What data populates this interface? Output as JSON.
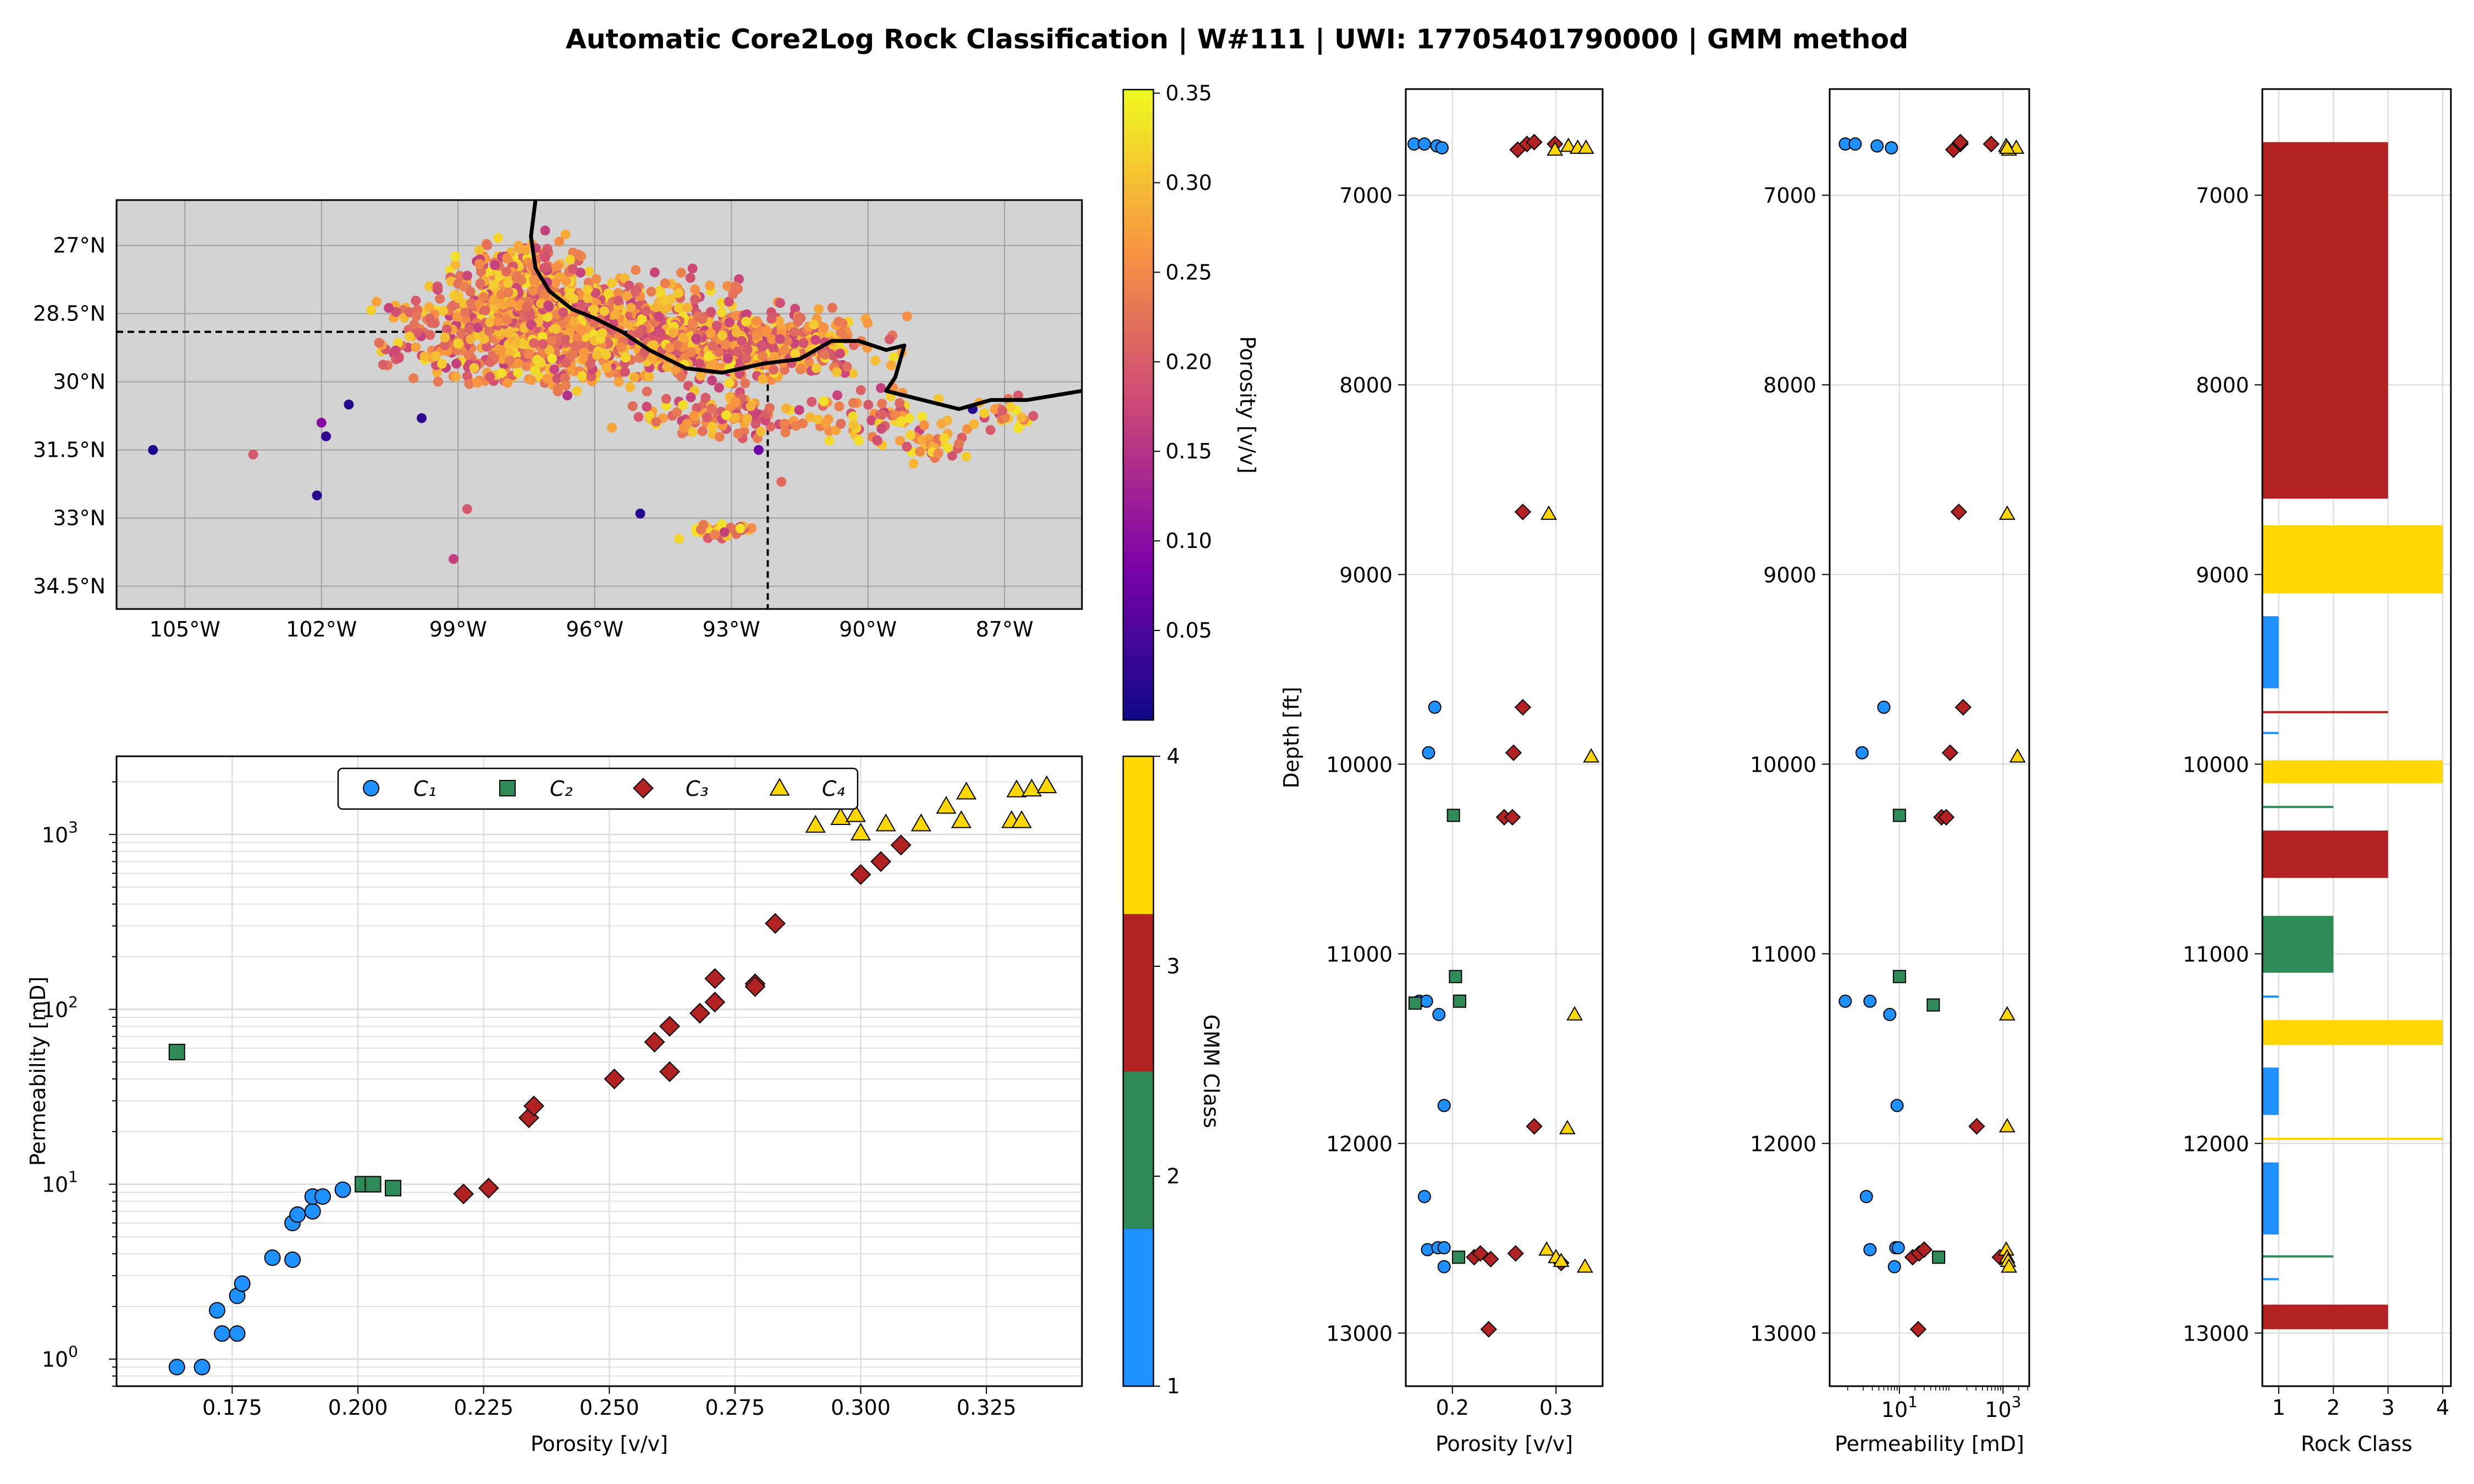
{
  "title": "Automatic Core2Log Rock Classification | W#111 | UWI: 17705401790000 | GMM method",
  "colors": {
    "C1": "#1E90FF",
    "C2": "#2E8B57",
    "C3": "#B22222",
    "C4": "#FFD700",
    "map_bg": "#D3D3D3",
    "grid": "#D9D9D9"
  },
  "map": {
    "xticks": [
      "105°W",
      "102°W",
      "99°W",
      "96°W",
      "93°W",
      "90°W",
      "87°W"
    ],
    "yticks": [
      "34.5°N",
      "33°N",
      "31.5°N",
      "30°N",
      "28.5°N",
      "27°N"
    ],
    "colorbar_label": "Porosity [v/v]",
    "colorbar_ticks": [
      "0.05",
      "0.10",
      "0.15",
      "0.20",
      "0.25",
      "0.30",
      "0.35"
    ],
    "colormap": "plasma"
  },
  "chart_data": [
    {
      "type": "scatter",
      "title": "",
      "xlabel": "Porosity [v/v]",
      "ylabel": "Permeability [mD]",
      "xlim": [
        0.152,
        0.344
      ],
      "ylim": [
        0.7,
        2800
      ],
      "yscale": "log",
      "xtick_labels": [
        "0.175",
        "0.200",
        "0.225",
        "0.250",
        "0.275",
        "0.300",
        "0.325"
      ],
      "ytick_labels": [
        "10^0",
        "10^1",
        "10^2",
        "10^3"
      ],
      "grid": true,
      "legend_placement": "top-center",
      "series": [
        {
          "name": "C1",
          "marker": "circle",
          "points": [
            [
              0.164,
              0.9
            ],
            [
              0.169,
              0.9
            ],
            [
              0.172,
              1.9
            ],
            [
              0.173,
              1.4
            ],
            [
              0.176,
              1.4
            ],
            [
              0.176,
              2.3
            ],
            [
              0.177,
              2.7
            ],
            [
              0.183,
              3.8
            ],
            [
              0.187,
              3.7
            ],
            [
              0.187,
              6.0
            ],
            [
              0.188,
              6.7
            ],
            [
              0.191,
              7.0
            ],
            [
              0.191,
              8.5
            ],
            [
              0.193,
              8.5
            ],
            [
              0.197,
              9.3
            ]
          ]
        },
        {
          "name": "C2",
          "marker": "square",
          "points": [
            [
              0.164,
              57
            ],
            [
              0.201,
              10.0
            ],
            [
              0.203,
              10.0
            ],
            [
              0.207,
              9.5
            ]
          ]
        },
        {
          "name": "C3",
          "marker": "diamond",
          "points": [
            [
              0.221,
              8.8
            ],
            [
              0.226,
              9.5
            ],
            [
              0.234,
              24
            ],
            [
              0.235,
              28
            ],
            [
              0.251,
              40
            ],
            [
              0.259,
              65
            ],
            [
              0.262,
              80
            ],
            [
              0.262,
              44
            ],
            [
              0.268,
              95
            ],
            [
              0.271,
              110
            ],
            [
              0.271,
              150
            ],
            [
              0.279,
              140
            ],
            [
              0.279,
              135
            ],
            [
              0.283,
              310
            ],
            [
              0.3,
              590
            ],
            [
              0.304,
              700
            ],
            [
              0.308,
              870
            ]
          ]
        },
        {
          "name": "C4",
          "marker": "triangle",
          "points": [
            [
              0.291,
              1130
            ],
            [
              0.296,
              1250
            ],
            [
              0.299,
              1300
            ],
            [
              0.3,
              1020
            ],
            [
              0.305,
              1150
            ],
            [
              0.312,
              1150
            ],
            [
              0.317,
              1450
            ],
            [
              0.32,
              1200
            ],
            [
              0.321,
              1750
            ],
            [
              0.33,
              1200
            ],
            [
              0.331,
              1800
            ],
            [
              0.332,
              1200
            ],
            [
              0.334,
              1820
            ],
            [
              0.337,
              1900
            ]
          ]
        }
      ]
    },
    {
      "type": "scatter",
      "title": "",
      "xlabel": "Porosity [v/v]",
      "ylabel": "Depth [ft]",
      "xlim": [
        0.155,
        0.345
      ],
      "ylim": [
        13280,
        6440
      ],
      "xtick_labels": [
        "0.2",
        "0.3"
      ],
      "ytick_labels": [
        "7000",
        "8000",
        "9000",
        "10000",
        "11000",
        "12000",
        "13000"
      ],
      "grid": true,
      "series": [
        {
          "name": "C1",
          "marker": "circle",
          "points": [
            [
              0.163,
              6730
            ],
            [
              0.173,
              6730
            ],
            [
              0.185,
              6740
            ],
            [
              0.19,
              6750
            ],
            [
              0.183,
              9700
            ],
            [
              0.177,
              9940
            ],
            [
              0.168,
              11250
            ],
            [
              0.175,
              11250
            ],
            [
              0.187,
              11320
            ],
            [
              0.192,
              11800
            ],
            [
              0.173,
              12280
            ],
            [
              0.176,
              12560
            ],
            [
              0.186,
              12550
            ],
            [
              0.192,
              12550
            ],
            [
              0.192,
              12650
            ]
          ]
        },
        {
          "name": "C2",
          "marker": "square",
          "points": [
            [
              0.201,
              10270
            ],
            [
              0.203,
              11120
            ],
            [
              0.207,
              11250
            ],
            [
              0.164,
              11260
            ],
            [
              0.206,
              12600
            ]
          ]
        },
        {
          "name": "C3",
          "marker": "diamond",
          "points": [
            [
              0.263,
              6760
            ],
            [
              0.272,
              6730
            ],
            [
              0.279,
              6720
            ],
            [
              0.299,
              6730
            ],
            [
              0.268,
              8670
            ],
            [
              0.268,
              9700
            ],
            [
              0.259,
              9940
            ],
            [
              0.25,
              10280
            ],
            [
              0.258,
              10280
            ],
            [
              0.279,
              11910
            ],
            [
              0.221,
              12600
            ],
            [
              0.227,
              12580
            ],
            [
              0.237,
              12610
            ],
            [
              0.261,
              12580
            ],
            [
              0.305,
              12630
            ],
            [
              0.235,
              12980
            ]
          ]
        },
        {
          "name": "C4",
          "marker": "triangle",
          "points": [
            [
              0.299,
              6760
            ],
            [
              0.312,
              6740
            ],
            [
              0.321,
              6750
            ],
            [
              0.329,
              6750
            ],
            [
              0.293,
              8680
            ],
            [
              0.334,
              9960
            ],
            [
              0.318,
              11320
            ],
            [
              0.311,
              11920
            ],
            [
              0.291,
              12560
            ],
            [
              0.3,
              12600
            ],
            [
              0.305,
              12620
            ],
            [
              0.328,
              12650
            ]
          ]
        }
      ]
    },
    {
      "type": "scatter",
      "title": "",
      "xlabel": "Permeability [mD]",
      "ylabel": "",
      "xlim": [
        0.45,
        3200
      ],
      "xscale": "log",
      "ylim": [
        13280,
        6440
      ],
      "xtick_labels": [
        "10^1",
        "10^3"
      ],
      "ytick_labels": [
        "7000",
        "8000",
        "9000",
        "10000",
        "11000",
        "12000",
        "13000"
      ],
      "grid": true,
      "series": [
        {
          "name": "C1",
          "marker": "circle",
          "points": [
            [
              0.9,
              6730
            ],
            [
              1.4,
              6730
            ],
            [
              3.7,
              6740
            ],
            [
              7.0,
              6750
            ],
            [
              5.0,
              9700
            ],
            [
              1.9,
              9940
            ],
            [
              0.9,
              11250
            ],
            [
              2.7,
              11250
            ],
            [
              6.5,
              11320
            ],
            [
              9.0,
              11800
            ],
            [
              2.3,
              12280
            ],
            [
              2.7,
              12560
            ],
            [
              8.5,
              12550
            ],
            [
              9.5,
              12550
            ],
            [
              8.0,
              12650
            ]
          ]
        },
        {
          "name": "C2",
          "marker": "square",
          "points": [
            [
              10.0,
              10270
            ],
            [
              10.0,
              11120
            ],
            [
              45,
              11270
            ],
            [
              57,
              12600
            ]
          ]
        },
        {
          "name": "C3",
          "marker": "diamond",
          "points": [
            [
              110,
              6760
            ],
            [
              150,
              6730
            ],
            [
              150,
              6720
            ],
            [
              590,
              6730
            ],
            [
              140,
              8670
            ],
            [
              170,
              9700
            ],
            [
              95,
              9940
            ],
            [
              65,
              10280
            ],
            [
              80,
              10280
            ],
            [
              310,
              11910
            ],
            [
              18,
              12600
            ],
            [
              24,
              12580
            ],
            [
              30,
              12560
            ],
            [
              870,
              12600
            ],
            [
              23,
              12980
            ]
          ]
        },
        {
          "name": "C4",
          "marker": "triangle",
          "points": [
            [
              1300,
              6760
            ],
            [
              1150,
              6740
            ],
            [
              1800,
              6750
            ],
            [
              1200,
              6750
            ],
            [
              1200,
              8680
            ],
            [
              1900,
              9960
            ],
            [
              1200,
              11320
            ],
            [
              1200,
              11910
            ],
            [
              1150,
              12560
            ],
            [
              1200,
              12600
            ],
            [
              1250,
              12620
            ],
            [
              1300,
              12650
            ]
          ]
        }
      ]
    },
    {
      "type": "bar",
      "orientation": "horizontal",
      "title": "",
      "xlabel": "Rock Class",
      "ylabel": "",
      "xlim": [
        0.7,
        4.15
      ],
      "ylim": [
        13280,
        6440
      ],
      "xtick_labels": [
        "1",
        "2",
        "3",
        "4"
      ],
      "ytick_labels": [
        "7000",
        "8000",
        "9000",
        "10000",
        "11000",
        "12000",
        "13000"
      ],
      "grid": true,
      "intervals": [
        {
          "top": 6720,
          "bottom": 8600,
          "class": 3
        },
        {
          "top": 8740,
          "bottom": 9100,
          "class": 4
        },
        {
          "top": 9220,
          "bottom": 9600,
          "class": 1
        },
        {
          "top": 9720,
          "bottom": 9730,
          "class": 3
        },
        {
          "top": 9830,
          "bottom": 9840,
          "class": 1
        },
        {
          "top": 9980,
          "bottom": 10100,
          "class": 4
        },
        {
          "top": 10220,
          "bottom": 10230,
          "class": 2
        },
        {
          "top": 10350,
          "bottom": 10600,
          "class": 3
        },
        {
          "top": 10800,
          "bottom": 11100,
          "class": 2
        },
        {
          "top": 11220,
          "bottom": 11230,
          "class": 1
        },
        {
          "top": 11350,
          "bottom": 11480,
          "class": 4
        },
        {
          "top": 11600,
          "bottom": 11850,
          "class": 1
        },
        {
          "top": 11970,
          "bottom": 11980,
          "class": 4
        },
        {
          "top": 12100,
          "bottom": 12480,
          "class": 1
        },
        {
          "top": 12590,
          "bottom": 12600,
          "class": 2
        },
        {
          "top": 12710,
          "bottom": 12720,
          "class": 1
        },
        {
          "top": 12850,
          "bottom": 12980,
          "class": 3
        }
      ]
    }
  ],
  "legend": {
    "entries": [
      "C₁",
      "C₂",
      "C₃",
      "C₄"
    ]
  },
  "class_colorbar": {
    "label": "GMM Class",
    "ticks": [
      "1",
      "2",
      "3",
      "4"
    ]
  }
}
